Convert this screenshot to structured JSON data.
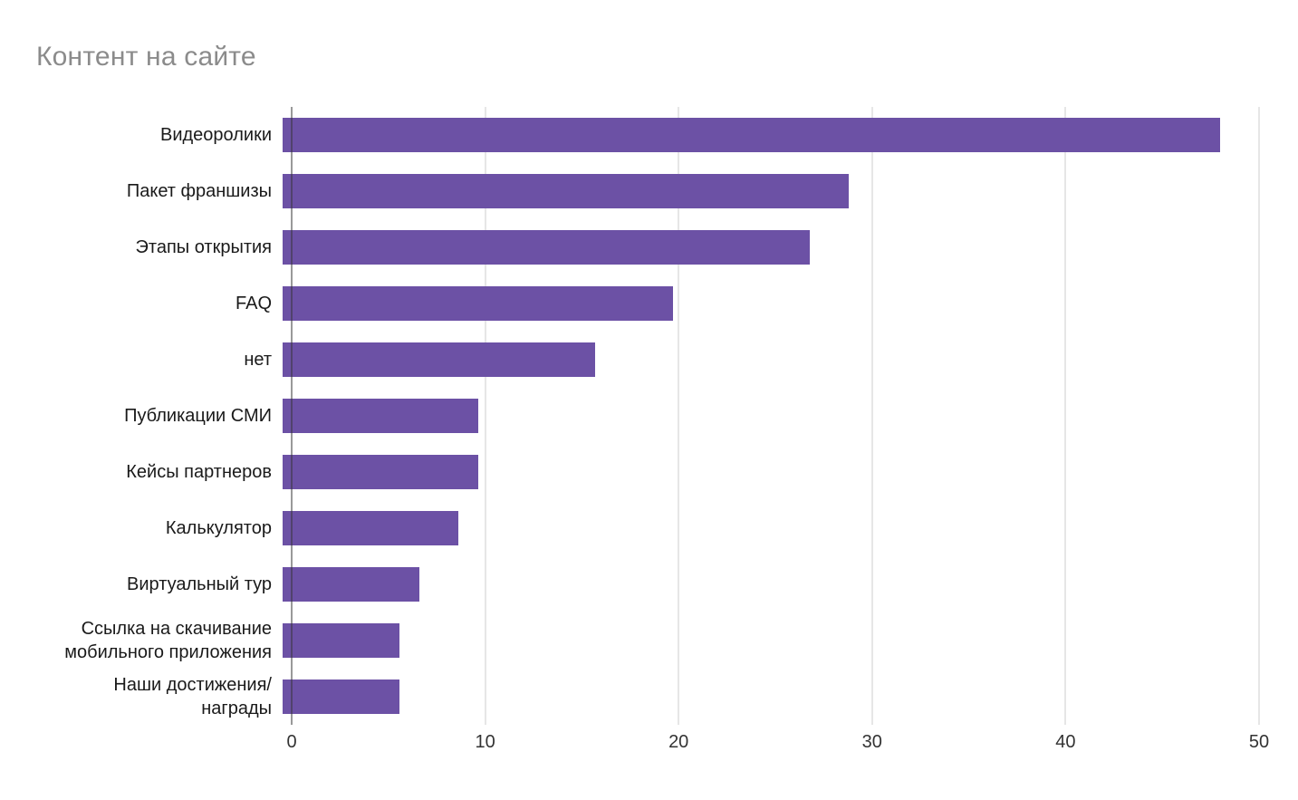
{
  "chart": {
    "title": "Контент на сайте",
    "title_color": "#8b8b8b",
    "bar_color": "#6c51a5",
    "gridline_color": "#cccccc",
    "baseline_color": "#333333"
  },
  "chart_data": {
    "type": "bar",
    "orientation": "horizontal",
    "title": "Контент на сайте",
    "categories": [
      "Видеоролики",
      "Пакет франшизы",
      "Этапы открытия",
      "FAQ",
      "нет",
      "Публикации СМИ",
      "Кейсы партнеров",
      "Калькулятор",
      "Виртуальный тур",
      "Ссылка на скачивание мобильного приложения",
      "Наши достижения/награды"
    ],
    "values": [
      48,
      29,
      27,
      20,
      16,
      10,
      10,
      9,
      7,
      6,
      6
    ],
    "xlabel": "",
    "ylabel": "",
    "xlim": [
      0,
      50
    ],
    "xticks": [
      0,
      10,
      20,
      30,
      40,
      50
    ],
    "grid": true,
    "legend": "none",
    "bar_color": "#6c51a5"
  }
}
